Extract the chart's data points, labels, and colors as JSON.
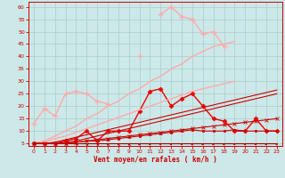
{
  "x": [
    0,
    1,
    2,
    3,
    4,
    5,
    6,
    7,
    8,
    9,
    10,
    11,
    12,
    13,
    14,
    15,
    16,
    17,
    18,
    19,
    20,
    21,
    22,
    23
  ],
  "ylim": [
    4,
    62
  ],
  "xlim": [
    -0.5,
    23.5
  ],
  "yticks": [
    5,
    10,
    15,
    20,
    25,
    30,
    35,
    40,
    45,
    50,
    55,
    60
  ],
  "xlabel": "Vent moyen/en rafales ( km/h )",
  "background_color": "#cce8e8",
  "grid_color": "#aacece",
  "tick_color": "#cc0000",
  "label_color": "#cc0000",
  "series": [
    {
      "values": [
        13,
        19,
        16,
        25,
        26,
        25,
        22,
        21,
        null,
        null,
        40,
        null,
        57,
        60,
        56,
        55,
        49,
        50,
        44,
        null,
        null,
        null,
        null,
        null
      ],
      "color": "#ffaaaa",
      "lw": 1.0,
      "marker": "+",
      "ms": 4,
      "mew": 1.0
    },
    {
      "values": [
        5,
        6,
        8,
        10,
        12,
        15,
        17,
        20,
        22,
        25,
        27,
        30,
        32,
        35,
        37,
        40,
        42,
        44,
        45,
        46,
        null,
        null,
        null,
        null
      ],
      "color": "#ffaaaa",
      "lw": 1.0,
      "marker": null,
      "ms": 0,
      "mew": 0
    },
    {
      "values": [
        5,
        5,
        5,
        6,
        7,
        10,
        6,
        10,
        10,
        10,
        18,
        26,
        27,
        20,
        23,
        25,
        20,
        15,
        14,
        10,
        10,
        15,
        10,
        10
      ],
      "color": "#ee0000",
      "lw": 1.0,
      "marker": "D",
      "ms": 2.5,
      "mew": 0.5
    },
    {
      "values": [
        5,
        5.5,
        7,
        8,
        9.5,
        11,
        12.5,
        14,
        15.5,
        17,
        18.5,
        20,
        21.5,
        23,
        24.5,
        26,
        27,
        28,
        29,
        30,
        null,
        null,
        null,
        null
      ],
      "color": "#ffaaaa",
      "lw": 1.0,
      "marker": null,
      "ms": 0,
      "mew": 0
    },
    {
      "values": [
        5,
        5,
        5.5,
        6.5,
        7.5,
        8.5,
        9.5,
        10.5,
        11.5,
        12.5,
        13.5,
        14.5,
        15.5,
        16.5,
        17.5,
        18.5,
        19.5,
        20.5,
        21.5,
        22.5,
        23.5,
        24.5,
        25.5,
        26.5
      ],
      "color": "#cc0000",
      "lw": 0.8,
      "marker": null,
      "ms": 0,
      "mew": 0
    },
    {
      "values": [
        5,
        5,
        5,
        5.5,
        6,
        7,
        8,
        9,
        10,
        11,
        12,
        13,
        14,
        15,
        16,
        17,
        18,
        19,
        20,
        21,
        22,
        23,
        24,
        25
      ],
      "color": "#cc0000",
      "lw": 0.8,
      "marker": null,
      "ms": 0,
      "mew": 0
    },
    {
      "values": [
        5,
        5,
        5,
        5,
        5.5,
        6,
        6.5,
        7,
        7.5,
        8,
        8.5,
        9,
        9.5,
        10,
        10.5,
        11,
        11.5,
        12,
        12.5,
        13,
        13.5,
        14,
        14.5,
        15
      ],
      "color": "#cc0000",
      "lw": 0.8,
      "marker": "x",
      "ms": 2.5,
      "mew": 0.6
    },
    {
      "values": [
        5,
        5,
        5,
        5,
        5,
        5,
        5,
        5,
        5,
        5,
        5,
        5,
        5,
        5,
        5,
        5,
        5,
        5,
        5,
        5,
        5,
        5,
        5,
        5
      ],
      "color": "#990000",
      "lw": 0.8,
      "marker": null,
      "ms": 0,
      "mew": 0
    },
    {
      "values": [
        5,
        5,
        5,
        5,
        5.5,
        6,
        6,
        6.5,
        7,
        7.5,
        8,
        8.5,
        9,
        9.5,
        10,
        10.5,
        10,
        10,
        10,
        10.5,
        10,
        10,
        10,
        10
      ],
      "color": "#cc0000",
      "lw": 0.8,
      "marker": "s",
      "ms": 1.5,
      "mew": 0.5
    }
  ],
  "arrows": {
    "x": [
      0,
      1,
      2,
      3,
      4,
      5,
      6,
      7,
      8,
      9,
      10,
      11,
      12,
      13,
      14,
      15,
      16,
      17,
      18,
      19,
      20,
      21,
      22,
      23
    ],
    "angles": [
      0,
      0,
      10,
      20,
      30,
      40,
      40,
      50,
      50,
      50,
      60,
      70,
      70,
      70,
      70,
      70,
      70,
      70,
      70,
      70,
      70,
      70,
      70,
      70
    ],
    "y": 4.5,
    "color": "#cc0000"
  }
}
